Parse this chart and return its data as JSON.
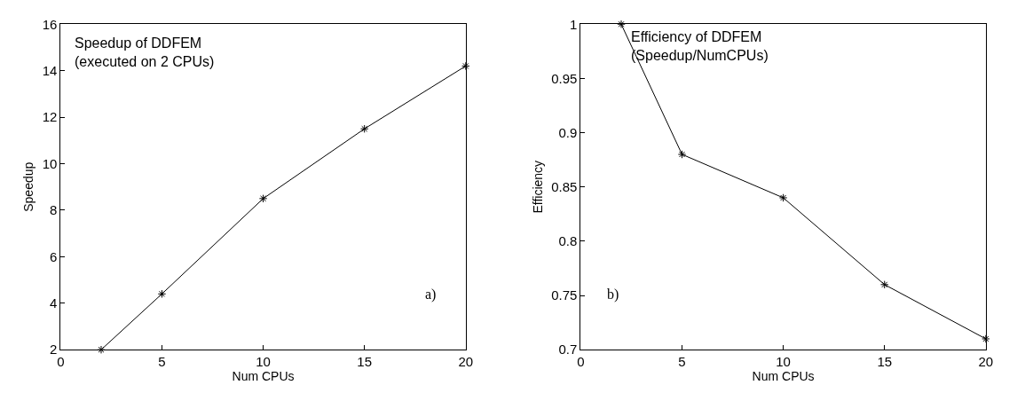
{
  "chart_data": [
    {
      "type": "line",
      "xlabel": "Num CPUs",
      "ylabel": "Speedup",
      "annotations": [
        "Speedup of DDFEM\n(executed on 2 CPUs)",
        "a)"
      ],
      "x": [
        2,
        5,
        10,
        15,
        20
      ],
      "series": [
        {
          "color": "#000000",
          "values": [
            2,
            4.4,
            8.5,
            11.5,
            14.2
          ]
        }
      ],
      "xlim": [
        0,
        20
      ],
      "xticks": [
        0,
        5,
        10,
        15,
        20
      ],
      "ylim": [
        2,
        16
      ],
      "yticks": [
        2,
        4,
        6,
        8,
        10,
        12,
        14,
        16
      ],
      "marker": "cross",
      "line_style": "solid"
    },
    {
      "type": "line",
      "xlabel": "Num CPUs",
      "ylabel": "Efficiency",
      "annotations": [
        "Efficiency of DDFEM\n(Speedup/NumCPUs)",
        "b)"
      ],
      "x": [
        2,
        5,
        10,
        15,
        20
      ],
      "series": [
        {
          "color": "#000000",
          "values": [
            1,
            0.88,
            0.84,
            0.76,
            0.71
          ]
        }
      ],
      "xlim": [
        0,
        20
      ],
      "xticks": [
        0,
        5,
        10,
        15,
        20
      ],
      "ylim": [
        0.7,
        1
      ],
      "yticks": [
        0.7,
        0.75,
        0.8,
        0.85,
        0.9,
        0.95,
        1
      ],
      "marker": "cross",
      "line_style": "solid"
    }
  ]
}
